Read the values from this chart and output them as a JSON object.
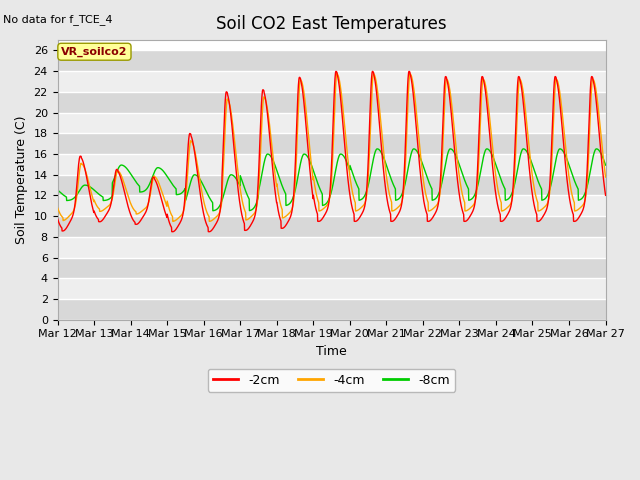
{
  "title": "Soil CO2 East Temperatures",
  "ylabel": "Soil Temperature (C)",
  "xlabel": "Time",
  "no_data_text": "No data for f_TCE_4",
  "sensor_label": "VR_soilco2",
  "ylim": [
    0,
    27
  ],
  "yticks": [
    0,
    2,
    4,
    6,
    8,
    10,
    12,
    14,
    16,
    18,
    20,
    22,
    24,
    26
  ],
  "line_colors": {
    "-2cm": "#ff0000",
    "-4cm": "#ffa500",
    "-8cm": "#00cc00"
  },
  "legend_labels": [
    "-2cm",
    "-4cm",
    "-8cm"
  ],
  "x_tick_labels": [
    "Mar 12",
    "Mar 13",
    "Mar 14",
    "Mar 15",
    "Mar 16",
    "Mar 17",
    "Mar 18",
    "Mar 19",
    "Mar 20",
    "Mar 21",
    "Mar 22",
    "Mar 23",
    "Mar 24",
    "Mar 25",
    "Mar 26",
    "Mar 27"
  ],
  "bg_color": "#e8e8e8",
  "plot_bg_color": "#ffffff",
  "grid_color": "#cccccc",
  "title_fontsize": 12,
  "axis_label_fontsize": 9,
  "tick_fontsize": 8,
  "band_color_dark": "#d8d8d8",
  "band_color_light": "#eeeeee"
}
